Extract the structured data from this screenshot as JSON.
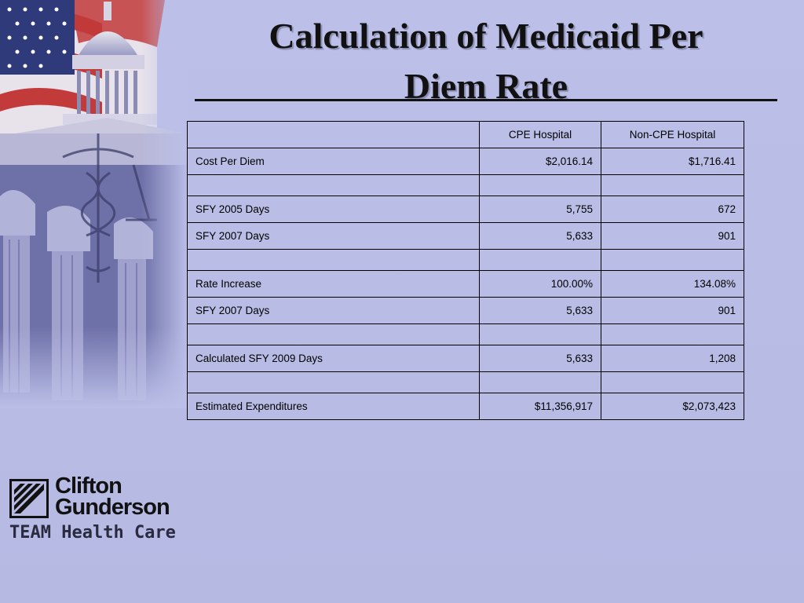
{
  "slide": {
    "title_line1": "Calculation of  Medicaid Per",
    "title_line2": "Diem Rate",
    "colors": {
      "background": "#babee6",
      "text": "#000000"
    }
  },
  "table": {
    "headers": [
      "",
      "CPE Hospital",
      "Non-CPE Hospital"
    ],
    "rows": [
      {
        "label": "Cost Per Diem",
        "cpe": "$2,016.14",
        "non_cpe": "$1,716.41"
      },
      {
        "label": "",
        "cpe": "",
        "non_cpe": ""
      },
      {
        "label": "SFY 2005 Days",
        "cpe": "5,755",
        "non_cpe": "672"
      },
      {
        "label": "SFY 2007 Days",
        "cpe": "5,633",
        "non_cpe": "901"
      },
      {
        "label": "",
        "cpe": "",
        "non_cpe": ""
      },
      {
        "label": "Rate Increase",
        "cpe": "100.00%",
        "non_cpe": "134.08%"
      },
      {
        "label": "SFY 2007 Days",
        "cpe": "5,633",
        "non_cpe": "901"
      },
      {
        "label": "",
        "cpe": "",
        "non_cpe": ""
      },
      {
        "label": "Calculated SFY 2009 Days",
        "cpe": "5,633",
        "non_cpe": "1,208"
      },
      {
        "label": "",
        "cpe": "",
        "non_cpe": ""
      },
      {
        "label": "Estimated Expenditures",
        "cpe": "$11,356,917",
        "non_cpe": "$2,073,423"
      }
    ]
  },
  "logo": {
    "name_line1": "Clifton",
    "name_line2": "Gunderson",
    "tagline": "TEAM Health Care",
    "icon": "clifton-gunderson-logo-mark"
  },
  "decoration": {
    "icon": "capitol-flag-caduceus-artwork"
  }
}
